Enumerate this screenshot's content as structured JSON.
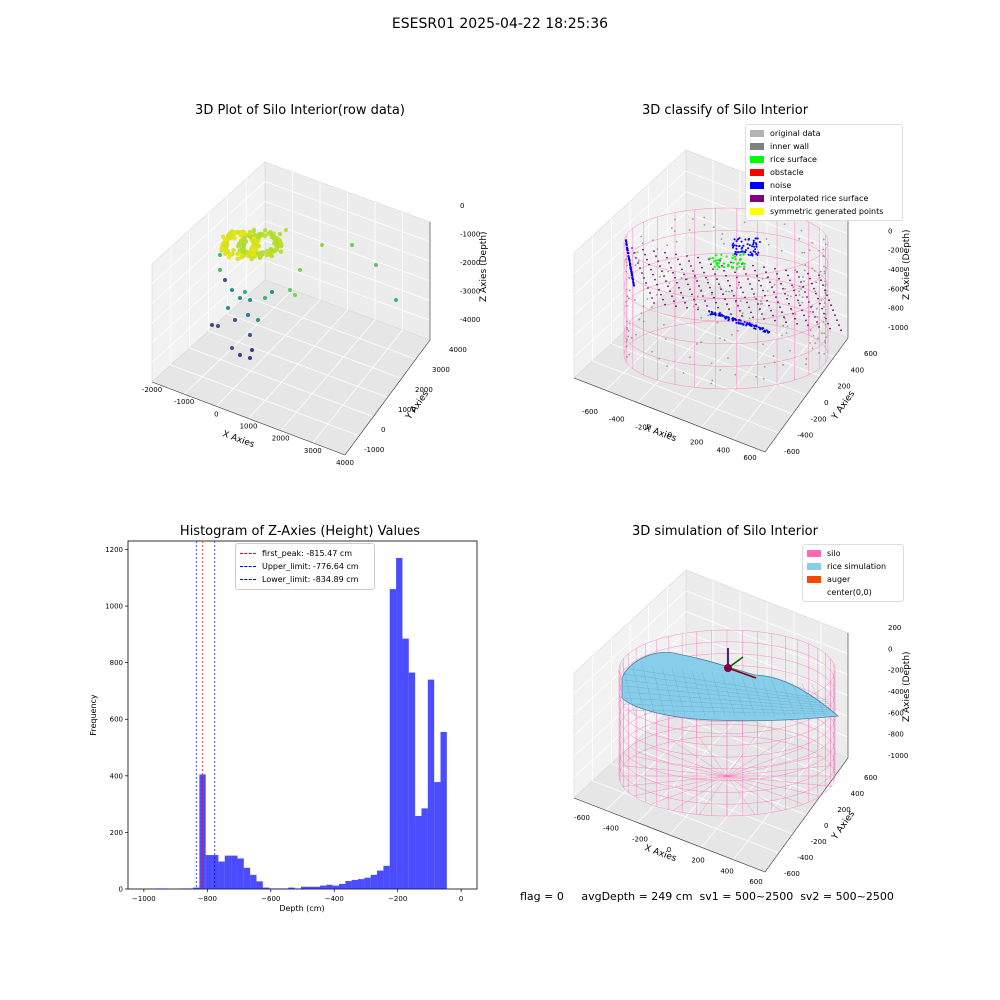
{
  "suptitle": "ESESR01 2025-04-22 18:25:36",
  "footer": "flag = 0     avgDepth = 249 cm  sv1 = 500~2500  sv2 = 500~2500",
  "panels": {
    "raw": {
      "title": "3D Plot of Silo Interior(row data)",
      "xlabel": "X Axies",
      "ylabel": "Y Axies",
      "zlabel": "Z Axies (Depth)",
      "xticks": [
        "-2000",
        "-1000",
        "0",
        "1000",
        "2000",
        "3000",
        "4000"
      ],
      "yticks": [
        "-1000",
        "0",
        "1000",
        "2000",
        "3000",
        "4000"
      ],
      "zticks": [
        "0",
        "-1000",
        "-2000",
        "-3000",
        "-4000"
      ]
    },
    "classify": {
      "title": "3D classify of Silo Interior",
      "xlabel": "X Axies",
      "ylabel": "Y Axies",
      "zlabel": "Z Axies (Depth)",
      "xticks": [
        "-600",
        "-400",
        "-200",
        "0",
        "200",
        "400",
        "600"
      ],
      "yticks": [
        "-600",
        "-400",
        "-200",
        "0",
        "200",
        "400",
        "600"
      ],
      "zticks": [
        "200",
        "0",
        "-200",
        "-400",
        "-600",
        "-800",
        "-1000"
      ],
      "legend": [
        {
          "label": "original data",
          "color": "#b3b3b3"
        },
        {
          "label": "inner wall",
          "color": "#808080"
        },
        {
          "label": "rice surface",
          "color": "#00ff00"
        },
        {
          "label": "obstacle",
          "color": "#ff0000"
        },
        {
          "label": "noise",
          "color": "#0000ff"
        },
        {
          "label": "interpolated rice surface",
          "color": "#800080"
        },
        {
          "label": "symmetric generated points",
          "color": "#ffff00"
        }
      ]
    },
    "simulation": {
      "title": "3D simulation of Silo Interior",
      "xlabel": "X Axies",
      "ylabel": "Y Axies",
      "zlabel": "Z Axies (Depth)",
      "xticks": [
        "-600",
        "-400",
        "-200",
        "0",
        "200",
        "400",
        "600"
      ],
      "yticks": [
        "-600",
        "-400",
        "-200",
        "0",
        "200",
        "400",
        "600"
      ],
      "zticks": [
        "200",
        "0",
        "-200",
        "-400",
        "-600",
        "-800",
        "-1000"
      ],
      "legend": [
        {
          "label": "silo",
          "color": "#ff69b4"
        },
        {
          "label": "rice simulation",
          "color": "#87ceeb"
        },
        {
          "label": "auger",
          "color": "#ff4500"
        },
        {
          "label": "center(0,0)",
          "color": "#ffffff"
        }
      ]
    }
  },
  "chart_data": {
    "type": "bar",
    "title": "Histogram of Z-Axies (Height) Values",
    "xlabel": "Depth (cm)",
    "ylabel": "Frequency",
    "xlim": [
      -1050,
      50
    ],
    "ylim": [
      0,
      1230
    ],
    "xticks": [
      -1000,
      -800,
      -600,
      -400,
      -200,
      0
    ],
    "yticks": [
      0,
      200,
      400,
      600,
      800,
      1000,
      1200
    ],
    "bar_color": "#0000ff",
    "bar_alpha": 0.7,
    "bins": [
      {
        "x0": -965,
        "x1": -945,
        "y": 2
      },
      {
        "x0": -945,
        "x1": -925,
        "y": 2
      },
      {
        "x0": -885,
        "x1": -865,
        "y": 2
      },
      {
        "x0": -865,
        "x1": -845,
        "y": 2
      },
      {
        "x0": -845,
        "x1": -825,
        "y": 5
      },
      {
        "x0": -825,
        "x1": -805,
        "y": 405
      },
      {
        "x0": -805,
        "x1": -785,
        "y": 120
      },
      {
        "x0": -785,
        "x1": -765,
        "y": 120
      },
      {
        "x0": -765,
        "x1": -745,
        "y": 97
      },
      {
        "x0": -745,
        "x1": -725,
        "y": 118
      },
      {
        "x0": -725,
        "x1": -705,
        "y": 118
      },
      {
        "x0": -705,
        "x1": -685,
        "y": 108
      },
      {
        "x0": -685,
        "x1": -665,
        "y": 75
      },
      {
        "x0": -665,
        "x1": -645,
        "y": 50
      },
      {
        "x0": -645,
        "x1": -625,
        "y": 27
      },
      {
        "x0": -625,
        "x1": -605,
        "y": 5
      },
      {
        "x0": -605,
        "x1": -585,
        "y": 2
      },
      {
        "x0": -585,
        "x1": -565,
        "y": 2
      },
      {
        "x0": -565,
        "x1": -545,
        "y": 2
      },
      {
        "x0": -545,
        "x1": -525,
        "y": 5
      },
      {
        "x0": -525,
        "x1": -505,
        "y": 2
      },
      {
        "x0": -505,
        "x1": -485,
        "y": 8
      },
      {
        "x0": -485,
        "x1": -465,
        "y": 8
      },
      {
        "x0": -465,
        "x1": -445,
        "y": 8
      },
      {
        "x0": -445,
        "x1": -425,
        "y": 12
      },
      {
        "x0": -425,
        "x1": -405,
        "y": 15
      },
      {
        "x0": -405,
        "x1": -385,
        "y": 12
      },
      {
        "x0": -385,
        "x1": -365,
        "y": 18
      },
      {
        "x0": -365,
        "x1": -345,
        "y": 28
      },
      {
        "x0": -345,
        "x1": -325,
        "y": 32
      },
      {
        "x0": -325,
        "x1": -305,
        "y": 35
      },
      {
        "x0": -305,
        "x1": -285,
        "y": 40
      },
      {
        "x0": -285,
        "x1": -265,
        "y": 50
      },
      {
        "x0": -265,
        "x1": -245,
        "y": 65
      },
      {
        "x0": -245,
        "x1": -225,
        "y": 82
      },
      {
        "x0": -225,
        "x1": -205,
        "y": 1060
      },
      {
        "x0": -205,
        "x1": -185,
        "y": 1170
      },
      {
        "x0": -185,
        "x1": -165,
        "y": 885
      },
      {
        "x0": -165,
        "x1": -145,
        "y": 765
      },
      {
        "x0": -145,
        "x1": -125,
        "y": 258
      },
      {
        "x0": -125,
        "x1": -105,
        "y": 285
      },
      {
        "x0": -105,
        "x1": -85,
        "y": 740
      },
      {
        "x0": -85,
        "x1": -65,
        "y": 378
      },
      {
        "x0": -65,
        "x1": -45,
        "y": 555
      }
    ],
    "vlines": [
      {
        "label": "first_peak: -815.47 cm",
        "x": -815.47,
        "color": "#ff0000"
      },
      {
        "label": "Upper_limit: -776.64 cm",
        "x": -776.64,
        "color": "#0000ff"
      },
      {
        "label": "Lower_limit: -834.89 cm",
        "x": -834.89,
        "color": "#0000ff"
      }
    ]
  }
}
